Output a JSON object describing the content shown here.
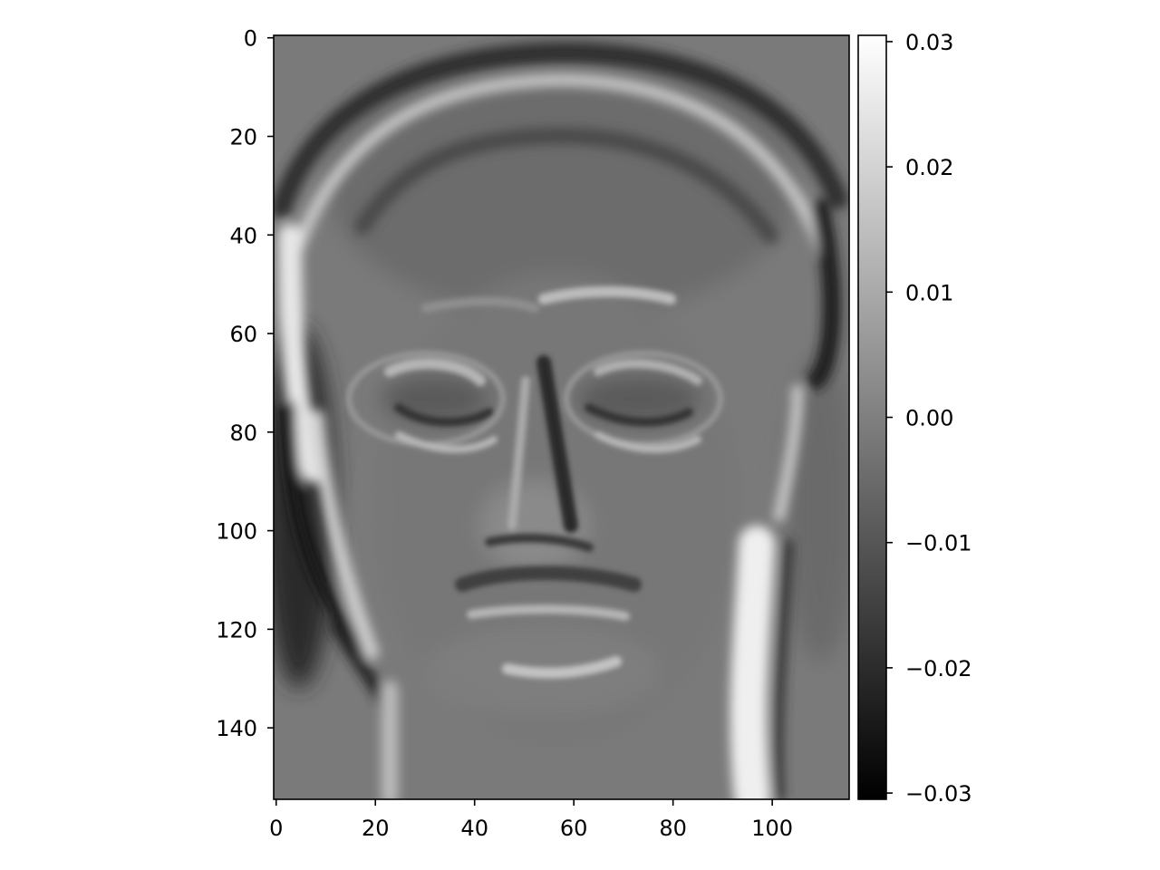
{
  "chart_data": {
    "type": "heatmap",
    "title": "",
    "xlabel": "",
    "ylabel": "",
    "image": {
      "rows": 155,
      "cols": 116,
      "colormap": "gray",
      "content": "grayscale eigenface-like image of a face with glasses"
    },
    "x_axis": {
      "ticks": [
        0,
        20,
        40,
        60,
        80,
        100
      ],
      "labels": [
        "0",
        "20",
        "40",
        "60",
        "80",
        "100"
      ],
      "xlim": [
        -0.5,
        115.5
      ]
    },
    "y_axis": {
      "ticks": [
        0,
        20,
        40,
        60,
        80,
        100,
        120,
        140
      ],
      "labels": [
        "0",
        "20",
        "40",
        "60",
        "80",
        "100",
        "120",
        "140"
      ],
      "ylim": [
        154.5,
        -0.5
      ],
      "inverted": true
    },
    "colorbar": {
      "min": -0.0305,
      "max": 0.0305,
      "ticks": [
        -0.03,
        -0.02,
        -0.01,
        0.0,
        0.01,
        0.02,
        0.03
      ],
      "labels": [
        "−0.03",
        "−0.02",
        "−0.01",
        "0.00",
        "0.01",
        "0.02",
        "0.03"
      ],
      "colors": [
        "#000000",
        "#ffffff"
      ]
    },
    "grid": false,
    "legend": "none"
  }
}
